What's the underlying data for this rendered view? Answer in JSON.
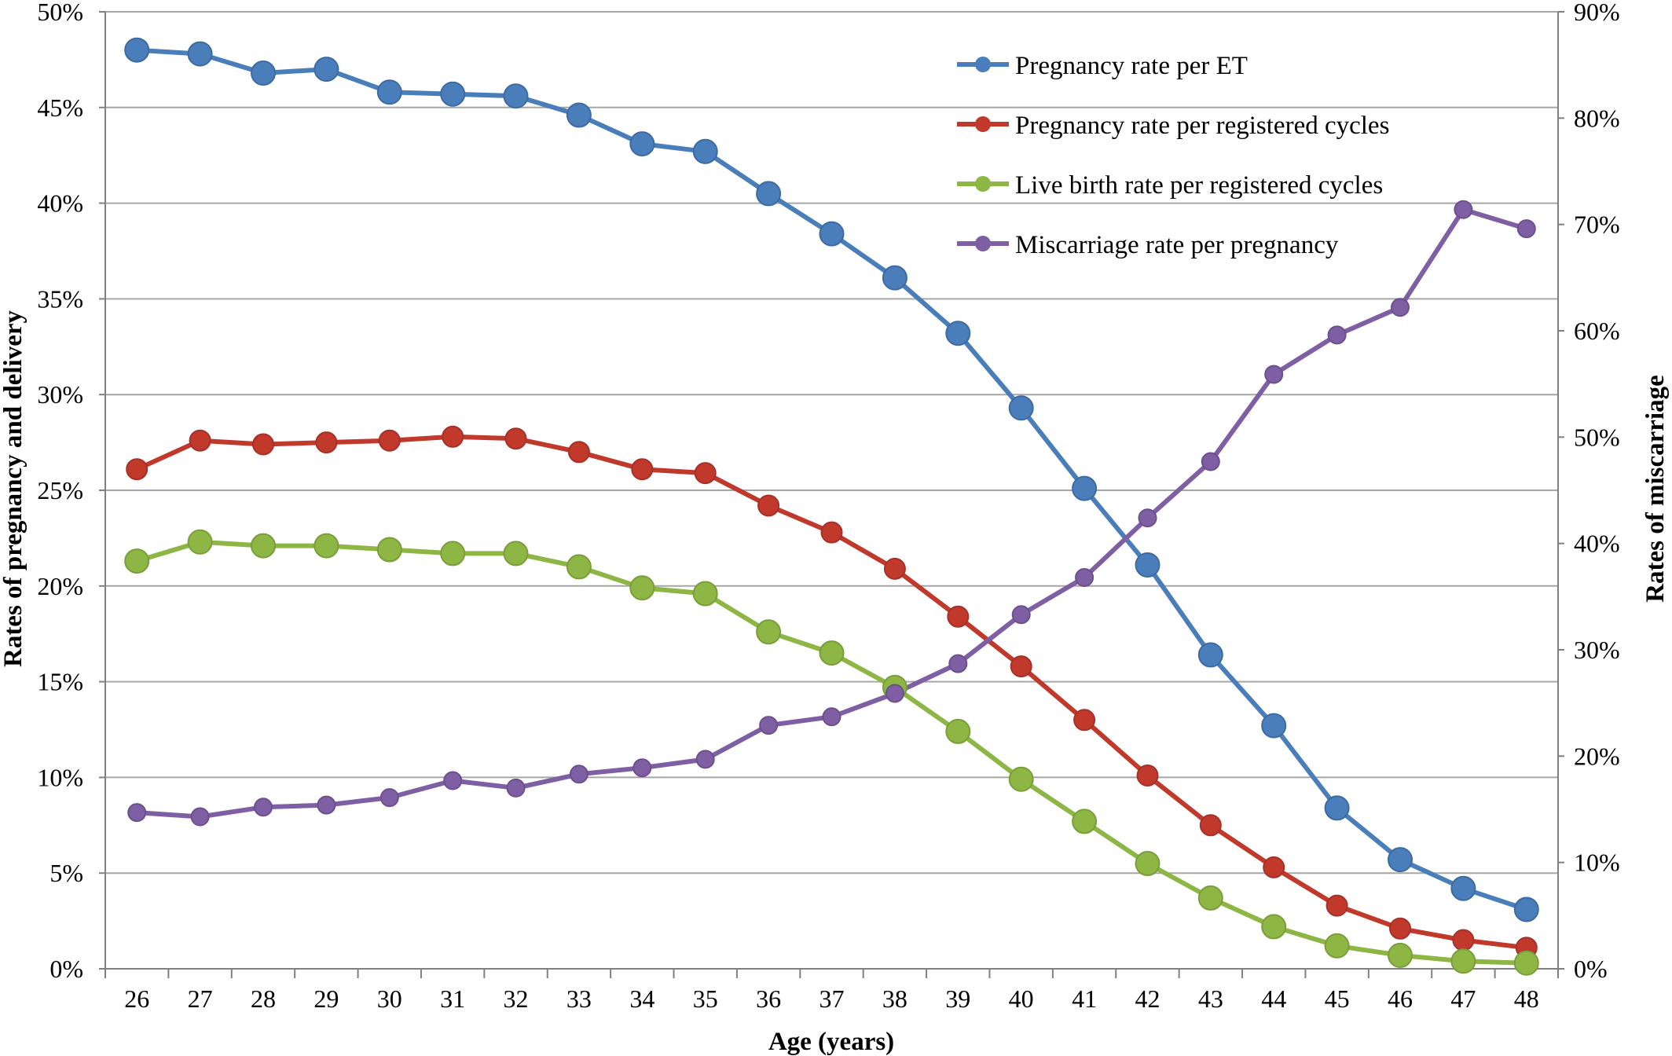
{
  "chart_data": {
    "type": "line",
    "xlabel": "Age (years)",
    "ylabel": "Rates of pregnancy and delivery",
    "y2label": "Rates of miscarriage",
    "x": [
      26,
      27,
      28,
      29,
      30,
      31,
      32,
      33,
      34,
      35,
      36,
      37,
      38,
      39,
      40,
      41,
      42,
      43,
      44,
      45,
      46,
      47,
      48
    ],
    "ylim": [
      0,
      50
    ],
    "y2lim": [
      0,
      90
    ],
    "yticks": [
      "0%",
      "5%",
      "10%",
      "15%",
      "20%",
      "25%",
      "30%",
      "35%",
      "40%",
      "45%",
      "50%"
    ],
    "y2ticks": [
      "0%",
      "10%",
      "20%",
      "30%",
      "40%",
      "50%",
      "60%",
      "70%",
      "80%",
      "90%"
    ],
    "grid": true,
    "legend_position": "top-right",
    "series": [
      {
        "name": "Pregnancy rate per ET",
        "axis": "left",
        "color": "#4a7ebb",
        "marker_size": "large",
        "values": [
          48.0,
          47.8,
          46.8,
          47.0,
          45.8,
          45.7,
          45.6,
          44.6,
          43.1,
          42.7,
          40.5,
          38.4,
          36.1,
          33.2,
          29.3,
          25.1,
          21.1,
          16.4,
          12.7,
          8.4,
          5.7,
          4.2,
          3.1
        ]
      },
      {
        "name": "Pregnancy rate per registered cycles",
        "axis": "left",
        "color": "#c0392b",
        "marker_size": "medium",
        "values": [
          26.1,
          27.6,
          27.4,
          27.5,
          27.6,
          27.8,
          27.7,
          27.0,
          26.1,
          25.9,
          24.2,
          22.8,
          20.9,
          18.4,
          15.8,
          13.0,
          10.1,
          7.5,
          5.3,
          3.3,
          2.1,
          1.5,
          1.1
        ]
      },
      {
        "name": "Live birth rate per registered cycles",
        "axis": "left",
        "color": "#8db645",
        "marker_size": "large",
        "values": [
          21.3,
          22.3,
          22.1,
          22.1,
          21.9,
          21.7,
          21.7,
          21.0,
          19.9,
          19.6,
          17.6,
          16.5,
          14.7,
          12.4,
          9.9,
          7.7,
          5.5,
          3.7,
          2.2,
          1.2,
          0.7,
          0.4,
          0.3
        ]
      },
      {
        "name": "Miscarriage rate per pregnancy",
        "axis": "right",
        "color": "#7f5fa3",
        "marker_size": "small",
        "values": [
          14.7,
          14.3,
          15.2,
          15.4,
          16.1,
          17.7,
          17.0,
          18.3,
          18.9,
          19.7,
          22.9,
          23.7,
          25.9,
          28.7,
          33.3,
          36.8,
          42.4,
          47.7,
          55.9,
          59.6,
          62.2,
          71.4,
          69.6
        ]
      }
    ]
  }
}
